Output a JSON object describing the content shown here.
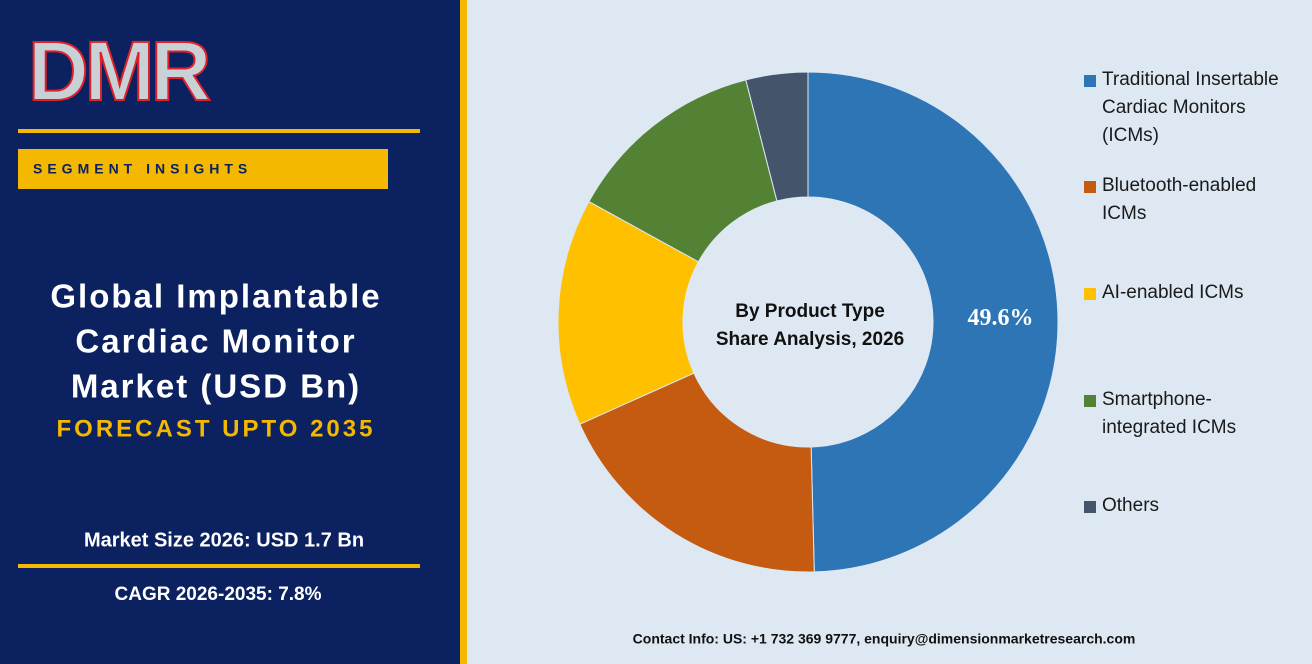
{
  "brand": {
    "logo": "DMR",
    "tag": "SEGMENT INSIGHTS",
    "heading": [
      "Global Implantable",
      "Cardiac Monitor",
      "Market (USD Bn)"
    ],
    "forecast": "FORECAST UPTO 2035",
    "market_size": "Market Size 2026: USD 1.7 Bn",
    "cagr": "CAGR 2026-2035: 7.8%",
    "contact": "Contact Info: US: +1 732 369 9777, enquiry@dimensionmarketresearch.com"
  },
  "chart_data": {
    "type": "pie",
    "hole": true,
    "center_text": [
      "By Product Type",
      "Share Analysis, 2026"
    ],
    "categories": [
      "Traditional Insertable Cardiac Monitors (ICMs)",
      "Bluetooth-enabled ICMs",
      "AI-enabled ICMs",
      "Smartphone-integrated ICMs",
      "Others"
    ],
    "values": [
      49.6,
      18.7,
      14.7,
      13.0,
      4.0
    ],
    "value_labels": [
      "49.6%",
      null,
      null,
      null,
      null
    ],
    "colors": [
      "#2e75b6",
      "#c55a11",
      "#ffc000",
      "#548235",
      "#44546a"
    ],
    "legend": "right"
  }
}
